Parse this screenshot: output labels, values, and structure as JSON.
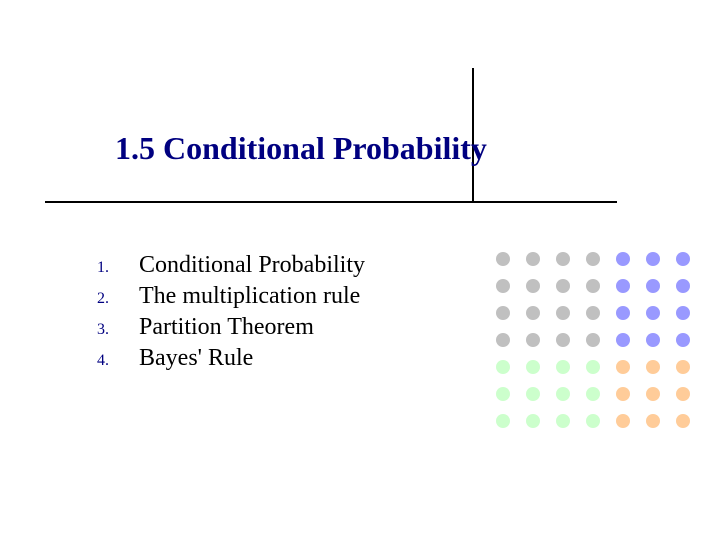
{
  "title": "1.5  Conditional Probability",
  "title_color": "#000080",
  "title_fontsize": 32,
  "list": {
    "items": [
      {
        "num": "1.",
        "text": "Conditional Probability"
      },
      {
        "num": "2.",
        "text": "The multiplication rule"
      },
      {
        "num": "3.",
        "text": "Partition Theorem"
      },
      {
        "num": "4.",
        "text": "Bayes' Rule"
      }
    ],
    "num_color": "#000080",
    "text_color": "#000000",
    "text_fontsize": 24,
    "num_fontsize": 16
  },
  "lines": {
    "color": "#000000",
    "width": 2
  },
  "dot_grid": {
    "rows": 7,
    "cols": 7,
    "dot_size": 14,
    "h_gap": 16,
    "v_gap": 13,
    "colors": [
      [
        "#c0c0c0",
        "#c0c0c0",
        "#c0c0c0",
        "#c0c0c0",
        "#9999ff",
        "#9999ff",
        "#9999ff"
      ],
      [
        "#c0c0c0",
        "#c0c0c0",
        "#c0c0c0",
        "#c0c0c0",
        "#9999ff",
        "#9999ff",
        "#9999ff"
      ],
      [
        "#c0c0c0",
        "#c0c0c0",
        "#c0c0c0",
        "#c0c0c0",
        "#9999ff",
        "#9999ff",
        "#9999ff"
      ],
      [
        "#c0c0c0",
        "#c0c0c0",
        "#c0c0c0",
        "#c0c0c0",
        "#9999ff",
        "#9999ff",
        "#9999ff"
      ],
      [
        "#ccffcc",
        "#ccffcc",
        "#ccffcc",
        "#ccffcc",
        "#ffcc99",
        "#ffcc99",
        "#ffcc99"
      ],
      [
        "#ccffcc",
        "#ccffcc",
        "#ccffcc",
        "#ccffcc",
        "#ffcc99",
        "#ffcc99",
        "#ffcc99"
      ],
      [
        "#ccffcc",
        "#ccffcc",
        "#ccffcc",
        "#ccffcc",
        "#ffcc99",
        "#ffcc99",
        "#ffcc99"
      ]
    ]
  },
  "background_color": "#ffffff"
}
